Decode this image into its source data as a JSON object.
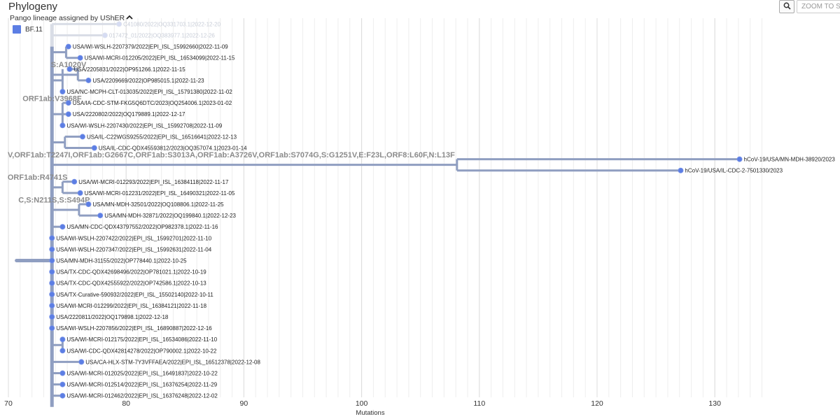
{
  "header": {
    "title": "Phylogeny",
    "color_by_label": "Pango lineage assigned by UShER",
    "zoom_label": "ZOOM TO SELECTED"
  },
  "legend": {
    "items": [
      {
        "label": "BF.11",
        "color": "#5c7ee4"
      }
    ]
  },
  "colors": {
    "tip": "#5c7ee4",
    "branch": "#8f9ec1",
    "branch_faded": "#d9dde6",
    "grid": "#dddddd",
    "branch_label": "#8b8b8b"
  },
  "chart_data": {
    "type": "phylogenetic-tree",
    "xlabel": "Mutations",
    "xlim": [
      70,
      135
    ],
    "xticks": [
      70,
      80,
      90,
      100,
      110,
      120,
      130
    ],
    "root_divergence": 72,
    "branch_labels": [
      {
        "text": "S:A1020V",
        "divergence": 76.8,
        "row": 3.9
      },
      {
        "text": "ORF1ab:V3968F",
        "divergence": 76.4,
        "row": 6.9
      },
      {
        "text": "V,ORF1ab:T2247I,ORF1ab:G2667C,ORF1ab:S3013A,ORF1ab:A3726V,ORF1ab:S7074G,S:G1251V,E:F23L,ORF8:L60F,N:L13F",
        "divergence": 108.1,
        "row": 11.9
      },
      {
        "text": "ORF1ab:R4741S",
        "divergence": 75.2,
        "row": 13.9
      },
      {
        "text": "C,S:N211S,S:S494P",
        "divergence": 77.1,
        "row": 15.9
      }
    ],
    "clades": [
      {
        "divergence": 73.7,
        "row_start": 2,
        "row_end": 34
      },
      {
        "divergence": 74.9,
        "row_start": 2,
        "row_end": 3
      },
      {
        "divergence": 74.6,
        "row_start": 4,
        "row_end": 6
      },
      {
        "divergence": 75.9,
        "row_start": 4,
        "row_end": 5
      },
      {
        "divergence": 74.6,
        "row_start": 7,
        "row_end": 9
      },
      {
        "divergence": 74.8,
        "row_start": 10,
        "row_end": 11
      },
      {
        "divergence": 108.1,
        "row_start": 12,
        "row_end": 13
      },
      {
        "divergence": 74.6,
        "row_start": 14,
        "row_end": 15
      },
      {
        "divergence": 76.0,
        "row_start": 16,
        "row_end": 17
      },
      {
        "divergence": 74.6,
        "row_start": 28,
        "row_end": 29
      }
    ],
    "tips": [
      {
        "label": "C41080/2022|OQ331703.1|2022-12-20",
        "divergence": 79.4,
        "row": 0,
        "faded": true
      },
      {
        "label": "017472_01/2022|OQ383977.1|2022-12-26",
        "divergence": 78.2,
        "row": 1,
        "faded": true
      },
      {
        "label": "USA/WI-WSLH-2207379/2022|EPI_ISL_15992660|2022-11-09",
        "divergence": 75.1,
        "row": 2
      },
      {
        "label": "USA/WI-MCRI-012205/2022|EPI_ISL_16534099|2022-11-15",
        "divergence": 76.1,
        "row": 3
      },
      {
        "label": "USA/2205831/2022|OP951266.1|2022-11-15",
        "divergence": 75.2,
        "row": 4
      },
      {
        "label": "USA/2209669/2022|OP985015.1|2022-11-23",
        "divergence": 76.8,
        "row": 5
      },
      {
        "label": "USA/NC-MCPH-CLT-013035/2022|EPI_ISL_15791380|2022-11-02",
        "divergence": 74.6,
        "row": 6
      },
      {
        "label": "USA/IA-CDC-STM-FKG5Q6DTC/2023|OQ254006.1|2023-01-02",
        "divergence": 75.1,
        "row": 7
      },
      {
        "label": "USA/2220802/2022|OQ179889.1|2022-12-17",
        "divergence": 75.1,
        "row": 8
      },
      {
        "label": "USA/WI-WSLH-2207430/2022|EPI_ISL_15992708|2022-11-09",
        "divergence": 74.6,
        "row": 9
      },
      {
        "label": "USA/IL-C22WGS9255/2022|EPI_ISL_16516641|2022-12-13",
        "divergence": 76.3,
        "row": 10
      },
      {
        "label": "USA/IL-CDC-QDX45593812/2023|OQ357074.1|2023-01-14",
        "divergence": 77.3,
        "row": 11
      },
      {
        "label": "hCoV-19/USA/MN-MDH-38920/2023",
        "divergence": 132.1,
        "row": 12
      },
      {
        "label": "hCoV-19/USA/IL-CDC-2-7501330/2023",
        "divergence": 127.1,
        "row": 13
      },
      {
        "label": "USA/WI-MCRI-012293/2022|EPI_ISL_16384118|2022-11-17",
        "divergence": 75.6,
        "row": 14
      },
      {
        "label": "USA/WI-MCRI-012231/2022|EPI_ISL_16490321|2022-11-05",
        "divergence": 76.1,
        "row": 15
      },
      {
        "label": "USA/MN-MDH-32501/2022|OQ108806.1|2022-11-25",
        "divergence": 76.8,
        "row": 16
      },
      {
        "label": "USA/MN-MDH-32871/2022|OQ199840.1|2022-12-23",
        "divergence": 77.8,
        "row": 17
      },
      {
        "label": "USA/MN-CDC-QDX43797552/2022|OP982378.1|2022-11-16",
        "divergence": 74.6,
        "row": 18
      },
      {
        "label": "USA/WI-WSLH-2207422/2022|EPI_ISL_15992701|2022-11-10",
        "divergence": 73.7,
        "row": 19
      },
      {
        "label": "USA/WI-WSLH-2207347/2022|EPI_ISL_15992631|2022-11-04",
        "divergence": 73.7,
        "row": 20
      },
      {
        "label": "USA/MN-MDH-31155/2022|OP778440.1|2022-10-25",
        "divergence": 73.7,
        "row": 21
      },
      {
        "label": "USA/TX-CDC-QDX42698496/2022|OP781021.1|2022-10-19",
        "divergence": 73.7,
        "row": 22
      },
      {
        "label": "USA/TX-CDC-QDX42555922/2022|OP742586.1|2022-10-13",
        "divergence": 73.7,
        "row": 23
      },
      {
        "label": "USA/TX-Curative-590932/2022|EPI_ISL_15502140|2022-10-11",
        "divergence": 73.7,
        "row": 24
      },
      {
        "label": "USA/WI-MCRI-012299/2022|EPI_ISL_16384121|2022-11-18",
        "divergence": 73.7,
        "row": 25
      },
      {
        "label": "USA/2220811/2022|OQ179898.1|2022-12-18",
        "divergence": 73.7,
        "row": 26
      },
      {
        "label": "USA/WI-WSLH-2207856/2022|EPI_ISL_16890887|2022-12-16",
        "divergence": 73.7,
        "row": 27
      },
      {
        "label": "USA/WI-MCRI-012175/2022|EPI_ISL_16534086|2022-11-10",
        "divergence": 74.6,
        "row": 28
      },
      {
        "label": "USA/WI-CDC-QDX42814278/2022|OP790002.1|2022-10-22",
        "divergence": 74.6,
        "row": 29
      },
      {
        "label": "USA/CA-HLX-STM-7Y3VFFAEA/2022|EPI_ISL_16512378|2022-12-08",
        "divergence": 76.2,
        "row": 30
      },
      {
        "label": "USA/WI-MCRI-012025/2022|EPI_ISL_16491837|2022-10-22",
        "divergence": 74.6,
        "row": 31
      },
      {
        "label": "USA/WI-MCRI-012514/2022|EPI_ISL_16376254|2022-11-29",
        "divergence": 74.6,
        "row": 32
      },
      {
        "label": "USA/WI-MCRI-012462/2022|EPI_ISL_16376248|2022-12-02",
        "divergence": 74.6,
        "row": 33
      }
    ]
  }
}
